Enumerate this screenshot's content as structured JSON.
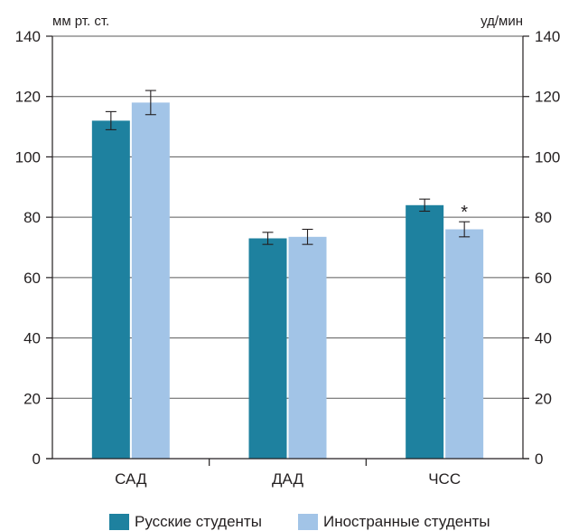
{
  "chart_data": {
    "type": "bar",
    "categories": [
      "САД",
      "ДАД",
      "ЧСС"
    ],
    "series": [
      {
        "name": "Русские студенты",
        "color": "#1e819f",
        "values": [
          112,
          73,
          84
        ],
        "errors": [
          3,
          2,
          2
        ]
      },
      {
        "name": "Иностранные студенты",
        "color": "#a2c4e7",
        "values": [
          118,
          73.5,
          76
        ],
        "errors": [
          4,
          2.5,
          2.5
        ]
      }
    ],
    "significance": [
      {
        "category": "ЧСС",
        "series": 1,
        "mark": "*"
      }
    ],
    "ylabel_left": "мм рт. ст.",
    "ylabel_right": "уд/мин",
    "ylim": [
      0,
      140
    ],
    "yticks": [
      0,
      20,
      40,
      60,
      80,
      100,
      120,
      140
    ],
    "grid": true,
    "legend_position": "bottom"
  }
}
